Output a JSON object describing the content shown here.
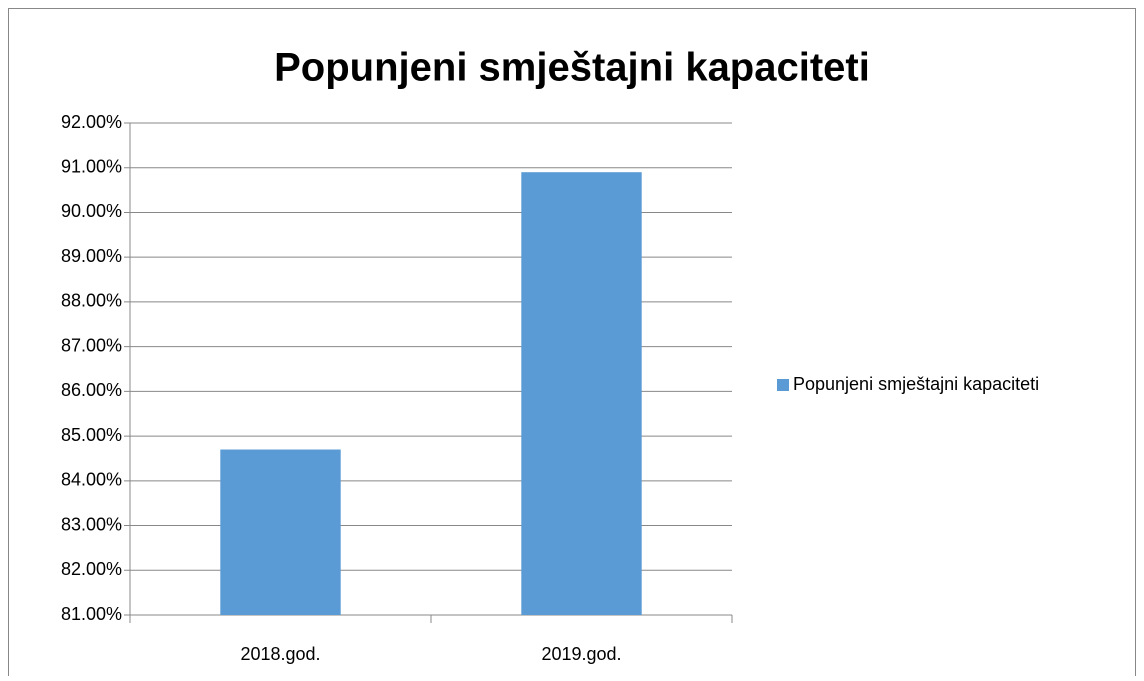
{
  "chart_data": {
    "type": "bar",
    "title": "Popunjeni smještajni kapaciteti",
    "categories": [
      "2018.god.",
      "2019.god."
    ],
    "series": [
      {
        "name": "Popunjeni smještajni kapaciteti",
        "color": "#5b9bd5",
        "values": [
          84.7,
          90.9
        ]
      }
    ],
    "ylim": [
      81,
      92
    ],
    "yticks": [
      {
        "value": 81,
        "label": "81.00%"
      },
      {
        "value": 82,
        "label": "82.00%"
      },
      {
        "value": 83,
        "label": "83.00%"
      },
      {
        "value": 84,
        "label": "84.00%"
      },
      {
        "value": 85,
        "label": "85.00%"
      },
      {
        "value": 86,
        "label": "86.00%"
      },
      {
        "value": 87,
        "label": "87.00%"
      },
      {
        "value": 88,
        "label": "88.00%"
      },
      {
        "value": 89,
        "label": "89.00%"
      },
      {
        "value": 90,
        "label": "90.00%"
      },
      {
        "value": 91,
        "label": "91.00%"
      },
      {
        "value": 92,
        "label": "92.00%"
      }
    ],
    "grid": true,
    "legend": "right"
  }
}
